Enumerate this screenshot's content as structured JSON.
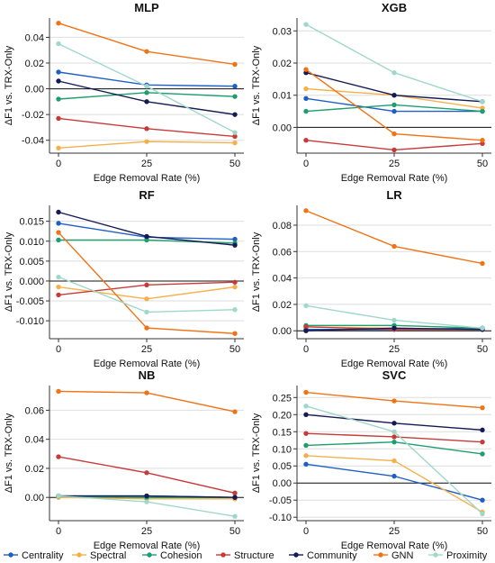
{
  "figure": {
    "legend": [
      {
        "name": "Centrality",
        "color": "#1f5fc4"
      },
      {
        "name": "Spectral",
        "color": "#f5b04a"
      },
      {
        "name": "Cohesion",
        "color": "#1e9e6f"
      },
      {
        "name": "Structure",
        "color": "#c83a3a"
      },
      {
        "name": "Community",
        "color": "#141a55"
      },
      {
        "name": "GNN",
        "color": "#f07316"
      },
      {
        "name": "Proximity",
        "color": "#9fd8c9"
      }
    ]
  },
  "chart_data": [
    {
      "type": "line",
      "title": "MLP",
      "xlabel": "Edge Removal Rate (%)",
      "ylabel": "ΔF1 vs. TRX-Only",
      "x": [
        0,
        25,
        50
      ],
      "xticks": [
        "0",
        "25",
        "50"
      ],
      "ylim": [
        -0.05,
        0.055
      ],
      "yticks": [
        -0.04,
        -0.02,
        0.0,
        0.02,
        0.04
      ],
      "ytick_labels": [
        "-0.04",
        "-0.02",
        "0.00",
        "0.02",
        "0.04"
      ],
      "zero_line": true,
      "grid": "horizontal",
      "series": [
        {
          "name": "Centrality",
          "values": [
            0.013,
            0.003,
            0.002
          ]
        },
        {
          "name": "Spectral",
          "values": [
            -0.046,
            -0.041,
            -0.042
          ]
        },
        {
          "name": "Cohesion",
          "values": [
            -0.008,
            -0.003,
            -0.006
          ]
        },
        {
          "name": "Structure",
          "values": [
            -0.023,
            -0.031,
            -0.037
          ]
        },
        {
          "name": "Community",
          "values": [
            0.006,
            -0.01,
            -0.02
          ]
        },
        {
          "name": "GNN",
          "values": [
            0.051,
            0.029,
            0.019
          ]
        },
        {
          "name": "Proximity",
          "values": [
            0.035,
            0.002,
            -0.034
          ]
        }
      ]
    },
    {
      "type": "line",
      "title": "XGB",
      "xlabel": "Edge Removal Rate (%)",
      "ylabel": "ΔF1 vs. TRX-Only",
      "x": [
        0,
        25,
        50
      ],
      "xticks": [
        "0",
        "25",
        "50"
      ],
      "ylim": [
        -0.008,
        0.034
      ],
      "yticks": [
        0.0,
        0.01,
        0.02,
        0.03
      ],
      "ytick_labels": [
        "0.00",
        "0.01",
        "0.02",
        "0.03"
      ],
      "zero_line": true,
      "grid": "horizontal",
      "series": [
        {
          "name": "Centrality",
          "values": [
            0.009,
            0.005,
            0.005
          ]
        },
        {
          "name": "Spectral",
          "values": [
            0.012,
            0.01,
            0.006
          ]
        },
        {
          "name": "Cohesion",
          "values": [
            0.005,
            0.007,
            0.005
          ]
        },
        {
          "name": "Structure",
          "values": [
            -0.004,
            -0.007,
            -0.005
          ]
        },
        {
          "name": "Community",
          "values": [
            0.017,
            0.01,
            0.008
          ]
        },
        {
          "name": "GNN",
          "values": [
            0.018,
            -0.002,
            -0.004
          ]
        },
        {
          "name": "Proximity",
          "values": [
            0.032,
            0.017,
            0.008
          ]
        }
      ]
    },
    {
      "type": "line",
      "title": "RF",
      "xlabel": "Edge Removal Rate (%)",
      "ylabel": "ΔF1 vs. TRX-Only",
      "x": [
        0,
        25,
        50
      ],
      "xticks": [
        "0",
        "25",
        "50"
      ],
      "ylim": [
        -0.0145,
        0.019
      ],
      "yticks": [
        -0.01,
        -0.005,
        0.0,
        0.005,
        0.01,
        0.015
      ],
      "ytick_labels": [
        "-0.010",
        "-0.005",
        "0.000",
        "0.005",
        "0.010",
        "0.015"
      ],
      "zero_line": true,
      "grid": "horizontal",
      "series": [
        {
          "name": "Centrality",
          "values": [
            0.0145,
            0.011,
            0.0105
          ]
        },
        {
          "name": "Spectral",
          "values": [
            -0.0015,
            -0.0045,
            -0.0015
          ]
        },
        {
          "name": "Cohesion",
          "values": [
            0.0103,
            0.0103,
            0.0095
          ]
        },
        {
          "name": "Structure",
          "values": [
            -0.0035,
            -0.001,
            -0.0003
          ]
        },
        {
          "name": "Community",
          "values": [
            0.0173,
            0.0112,
            0.009
          ]
        },
        {
          "name": "GNN",
          "values": [
            0.0122,
            -0.0118,
            -0.0132
          ]
        },
        {
          "name": "Proximity",
          "values": [
            0.001,
            -0.0078,
            -0.0072
          ]
        }
      ]
    },
    {
      "type": "line",
      "title": "LR",
      "xlabel": "Edge Removal Rate (%)",
      "ylabel": "ΔF1 vs. TRX-Only",
      "x": [
        0,
        25,
        50
      ],
      "xticks": [
        "0",
        "25",
        "50"
      ],
      "ylim": [
        -0.006,
        0.095
      ],
      "yticks": [
        0.0,
        0.02,
        0.04,
        0.06,
        0.08
      ],
      "ytick_labels": [
        "0.00",
        "0.02",
        "0.04",
        "0.06",
        "0.08"
      ],
      "zero_line": true,
      "grid": "horizontal",
      "series": [
        {
          "name": "Centrality",
          "values": [
            0.001,
            0.001,
            0.002
          ]
        },
        {
          "name": "Spectral",
          "values": [
            0.003,
            0.002,
            0.001
          ]
        },
        {
          "name": "Cohesion",
          "values": [
            0.004,
            0.004,
            0.002
          ]
        },
        {
          "name": "Structure",
          "values": [
            0.003,
            0.001,
            0.001
          ]
        },
        {
          "name": "Community",
          "values": [
            0.0,
            0.002,
            0.001
          ]
        },
        {
          "name": "GNN",
          "values": [
            0.091,
            0.064,
            0.051
          ]
        },
        {
          "name": "Proximity",
          "values": [
            0.019,
            0.008,
            0.002
          ]
        }
      ]
    },
    {
      "type": "line",
      "title": "NB",
      "xlabel": "Edge Removal Rate (%)",
      "ylabel": "ΔF1 vs. TRX-Only",
      "x": [
        0,
        25,
        50
      ],
      "xticks": [
        "0",
        "25",
        "50"
      ],
      "ylim": [
        -0.016,
        0.077
      ],
      "yticks": [
        0.0,
        0.02,
        0.04,
        0.06
      ],
      "ytick_labels": [
        "0.00",
        "0.02",
        "0.04",
        "0.06"
      ],
      "zero_line": true,
      "grid": "horizontal",
      "series": [
        {
          "name": "Centrality",
          "values": [
            0.001,
            0.001,
            0.0
          ]
        },
        {
          "name": "Spectral",
          "values": [
            0.0,
            -0.001,
            -0.001
          ]
        },
        {
          "name": "Cohesion",
          "values": [
            0.001,
            0.0,
            0.0
          ]
        },
        {
          "name": "Structure",
          "values": [
            0.028,
            0.017,
            0.003
          ]
        },
        {
          "name": "Community",
          "values": [
            0.001,
            0.001,
            0.0
          ]
        },
        {
          "name": "GNN",
          "values": [
            0.073,
            0.072,
            0.059
          ]
        },
        {
          "name": "Proximity",
          "values": [
            0.001,
            -0.003,
            -0.013
          ]
        }
      ]
    },
    {
      "type": "line",
      "title": "SVC",
      "xlabel": "Edge Removal Rate (%)",
      "ylabel": "ΔF1 vs. TRX-Only",
      "x": [
        0,
        25,
        50
      ],
      "xticks": [
        "0",
        "25",
        "50"
      ],
      "ylim": [
        -0.11,
        0.285
      ],
      "yticks": [
        -0.1,
        -0.05,
        0.0,
        0.05,
        0.1,
        0.15,
        0.2,
        0.25
      ],
      "ytick_labels": [
        "-0.10",
        "-0.05",
        "0.00",
        "0.05",
        "0.10",
        "0.15",
        "0.20",
        "0.25"
      ],
      "zero_line": true,
      "grid": "horizontal",
      "series": [
        {
          "name": "Centrality",
          "values": [
            0.055,
            0.02,
            -0.05
          ]
        },
        {
          "name": "Spectral",
          "values": [
            0.08,
            0.065,
            -0.085
          ]
        },
        {
          "name": "Cohesion",
          "values": [
            0.11,
            0.12,
            0.085
          ]
        },
        {
          "name": "Structure",
          "values": [
            0.145,
            0.135,
            0.12
          ]
        },
        {
          "name": "Community",
          "values": [
            0.2,
            0.175,
            0.155
          ]
        },
        {
          "name": "GNN",
          "values": [
            0.265,
            0.24,
            0.22
          ]
        },
        {
          "name": "Proximity",
          "values": [
            0.225,
            0.15,
            -0.09
          ]
        }
      ]
    }
  ]
}
